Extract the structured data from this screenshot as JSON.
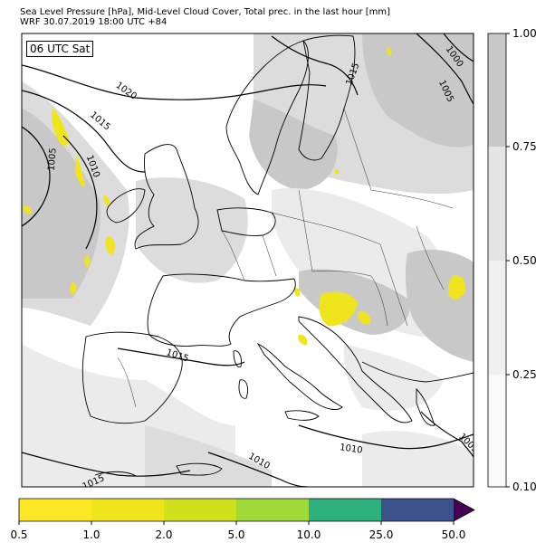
{
  "title": {
    "line1": "Sea Level Pressure [hPa], Mid-Level Cloud Cover, Total prec. in the last hour [mm]",
    "line2": "WRF 30.07.2019 18:00 UTC +84"
  },
  "stamp": "06 UTC Sat",
  "isobar_labels": [
    "1000",
    "1005",
    "1015",
    "1020",
    "1015",
    "1010",
    "1005",
    "1015",
    "1010",
    "1010",
    "1005",
    "1015"
  ],
  "cloud_colorbar": {
    "ticks": [
      "1.00",
      "0.75",
      "0.50",
      "0.25",
      "0.10"
    ],
    "colors": [
      "#c8c8c8",
      "#e4e4e4",
      "#f0f0f0",
      "#fafafa"
    ]
  },
  "precip_colorbar": {
    "ticks": [
      "0.5",
      "1.0",
      "2.0",
      "5.0",
      "10.0",
      "25.0",
      "50.0"
    ],
    "colors": [
      "#fde725",
      "#f0e51d",
      "#d0e11c",
      "#a0da39",
      "#2db27d",
      "#3b528b",
      "#440154"
    ]
  },
  "colors": {
    "cloud_high": "#c8c8c8",
    "cloud_mid": "#dcdcdc",
    "cloud_low": "#ebebeb",
    "precip": "#f0e51d",
    "coast": "#000000"
  }
}
